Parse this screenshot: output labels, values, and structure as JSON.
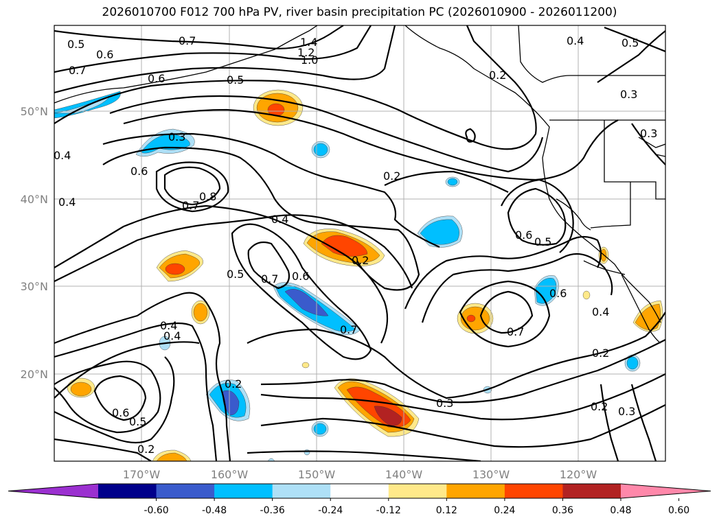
{
  "title": "2026010700 F012 700 hPa PV, river basin precipitation PC (2026010900 - 2026011200)",
  "lat_labels": [
    "50°N",
    "40°N",
    "30°N",
    "20°N"
  ],
  "lon_labels": [
    "170°W",
    "160°W",
    "150°W",
    "140°W",
    "130°W",
    "120°W"
  ],
  "contour_labels": [
    "0.5",
    "0.6",
    "0.7",
    "1.4",
    "1.2",
    "1.0",
    "0.7",
    "0.6",
    "0.5",
    "0.4",
    "0.5",
    "0.3",
    "0.4",
    "0.3",
    "0.3",
    "0.6",
    "0.7",
    "0.8",
    "0.4",
    "0.2",
    "0.2",
    "0.4",
    "0.6",
    "0.5",
    "0.5",
    "0.7",
    "0.6",
    "0.7",
    "0.6",
    "0.7",
    "0.4",
    "0.2",
    "0.2",
    "0.3",
    "0.6",
    "0.5",
    "0.2",
    "0.2",
    "0.3",
    "0.4",
    "0.2",
    "0.4"
  ],
  "colorbar": {
    "tick_labels": [
      "-0.60",
      "-0.48",
      "-0.36",
      "-0.24",
      "-0.12",
      "0.12",
      "0.24",
      "0.36",
      "0.48",
      "0.60"
    ],
    "colors": [
      "#9b30d0",
      "#00008b",
      "#3a5bcc",
      "#00bfff",
      "#aee0f7",
      "#ffffff",
      "#ffe98a",
      "#ffa500",
      "#ff4500",
      "#b22222",
      "#ff88aa"
    ]
  },
  "shading_colors": {
    "light_blue": "#aee0f7",
    "blue": "#00bfff",
    "mid_blue": "#3a5bcc",
    "light_orange": "#ffe98a",
    "orange": "#ffa500",
    "red_orange": "#ff4500",
    "dark_red": "#b22222"
  }
}
